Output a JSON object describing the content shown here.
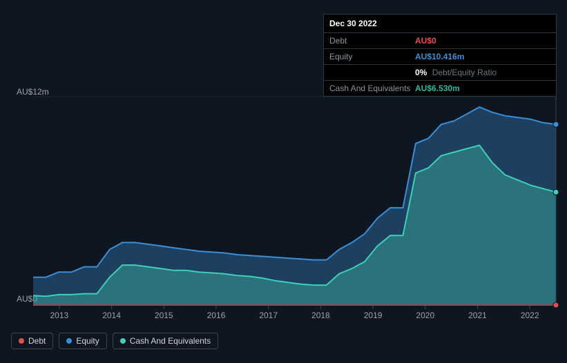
{
  "chart": {
    "type": "area",
    "background_color": "#0e1621",
    "grid_color": "#1a2430",
    "axis_color": "#3a4550",
    "label_color": "#9aa4ae",
    "label_fontsize": 12,
    "y_axis": {
      "max_label": "AU$12m",
      "min_label": "AU$0",
      "min": 0,
      "max": 12
    },
    "x_axis": {
      "labels": [
        "2013",
        "2014",
        "2015",
        "2016",
        "2017",
        "2018",
        "2019",
        "2020",
        "2021",
        "2022"
      ]
    },
    "series": {
      "debt": {
        "label": "Debt",
        "color": "#e84d4d",
        "fill_opacity": 0.25,
        "values": [
          0,
          0,
          0,
          0,
          0,
          0,
          0,
          0,
          0,
          0,
          0,
          0,
          0,
          0,
          0,
          0,
          0,
          0,
          0,
          0,
          0,
          0,
          0,
          0,
          0,
          0,
          0,
          0,
          0,
          0,
          0,
          0,
          0,
          0,
          0,
          0,
          0,
          0,
          0,
          0,
          0,
          0
        ]
      },
      "equity": {
        "label": "Equity",
        "color": "#3b8fd6",
        "fill_opacity": 0.35,
        "values": [
          1.6,
          1.6,
          1.9,
          1.9,
          2.2,
          2.2,
          3.2,
          3.6,
          3.6,
          3.5,
          3.4,
          3.3,
          3.2,
          3.1,
          3.05,
          3.0,
          2.9,
          2.85,
          2.8,
          2.75,
          2.7,
          2.65,
          2.6,
          2.6,
          3.2,
          3.6,
          4.1,
          5.0,
          5.6,
          5.6,
          9.3,
          9.6,
          10.4,
          10.6,
          11.0,
          11.4,
          11.1,
          10.9,
          10.8,
          10.7,
          10.5,
          10.4
        ]
      },
      "cash": {
        "label": "Cash And Equivalents",
        "color": "#3fd0b6",
        "fill_opacity": 0.35,
        "values": [
          0.55,
          0.5,
          0.6,
          0.6,
          0.65,
          0.65,
          1.6,
          2.3,
          2.3,
          2.2,
          2.1,
          2.0,
          2.0,
          1.9,
          1.85,
          1.8,
          1.7,
          1.65,
          1.55,
          1.4,
          1.3,
          1.2,
          1.15,
          1.15,
          1.8,
          2.1,
          2.5,
          3.4,
          4.0,
          4.0,
          7.6,
          7.9,
          8.6,
          8.8,
          9.0,
          9.2,
          8.2,
          7.5,
          7.2,
          6.9,
          6.7,
          6.5
        ]
      }
    }
  },
  "tooltip": {
    "date": "Dec 30 2022",
    "rows": {
      "debt": {
        "label": "Debt",
        "value": "AU$0"
      },
      "equity": {
        "label": "Equity",
        "value": "AU$10.416m"
      },
      "ratio": {
        "label": "",
        "value_pct": "0%",
        "value_lbl": "Debt/Equity Ratio"
      },
      "cash": {
        "label": "Cash And Equivalents",
        "value": "AU$6.530m"
      }
    }
  },
  "legend": {
    "debt": "Debt",
    "equity": "Equity",
    "cash": "Cash And Equivalents"
  },
  "colors": {
    "debt": "#e84d4d",
    "equity": "#3b8fd6",
    "cash": "#3fd0b6"
  }
}
